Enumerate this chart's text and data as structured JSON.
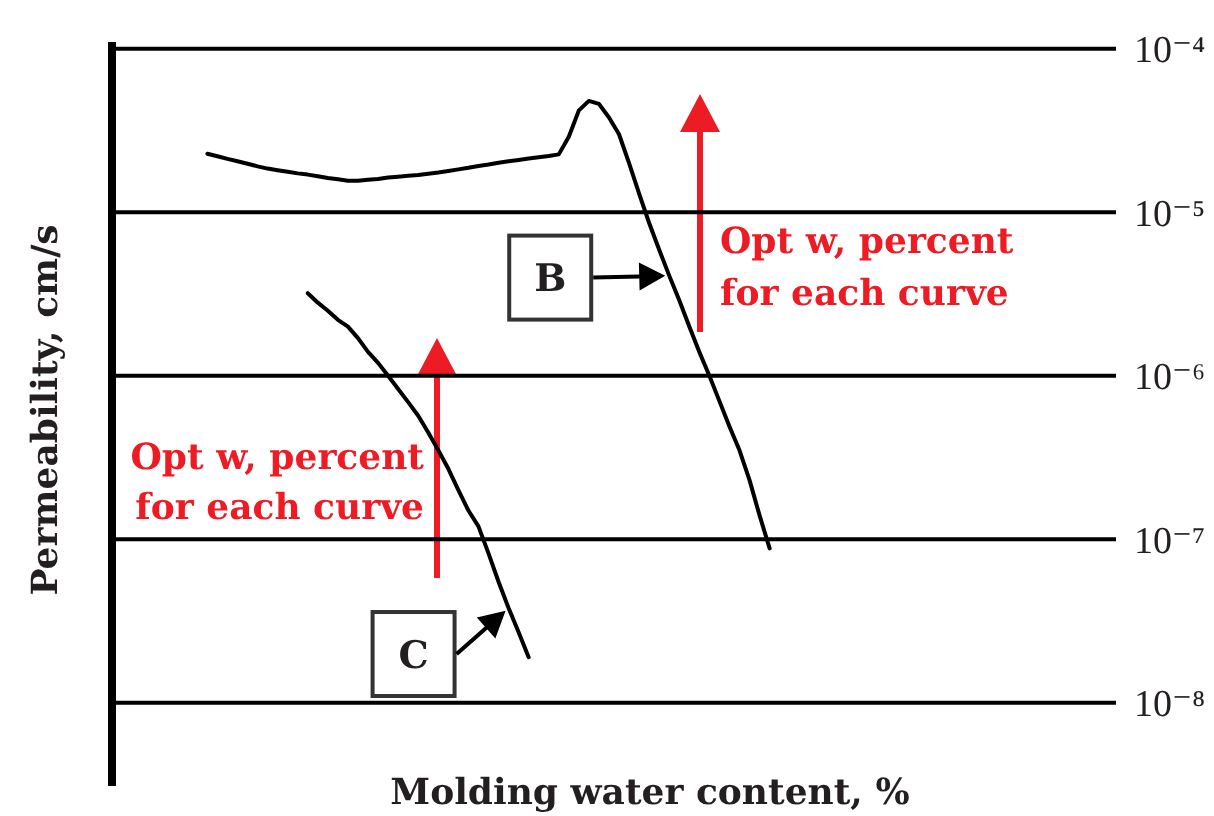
{
  "chart_data": {
    "type": "line",
    "xlabel": "Molding water content, %",
    "ylabel": "Permeability, cm/s",
    "categories": [
      null,
      null,
      null,
      null,
      null,
      null,
      null,
      null,
      null,
      null,
      null,
      null,
      null,
      null,
      null,
      null,
      null,
      null,
      null,
      null,
      null,
      null,
      null,
      null,
      null,
      null,
      null,
      null,
      null,
      null,
      null,
      null,
      null,
      null,
      null,
      null,
      null,
      null,
      null,
      null,
      null,
      null,
      null,
      null,
      null,
      null,
      null,
      null,
      null,
      null,
      null,
      null,
      null,
      null,
      null,
      null,
      null,
      null,
      null,
      null,
      null,
      null,
      null,
      null,
      null,
      null,
      null,
      null,
      null,
      null,
      null,
      null,
      null,
      null,
      null,
      null,
      null,
      null,
      null,
      null,
      null,
      null,
      null,
      null,
      null,
      null,
      null,
      null,
      null,
      null,
      null,
      null,
      null,
      null,
      null,
      null,
      null,
      null,
      null,
      null
    ],
    "series": [
      {
        "color": "#000000",
        "values": [
          null,
          null,
          null,
          null,
          null,
          null,
          null,
          null,
          null,
          2.28e-05,
          2.2e-05,
          2.12e-05,
          2.05e-05,
          1.98e-05,
          1.91e-05,
          1.85e-05,
          1.81e-05,
          1.77e-05,
          1.73e-05,
          1.7e-05,
          1.66e-05,
          1.62e-05,
          1.59e-05,
          1.56e-05,
          1.56e-05,
          1.58e-05,
          1.6e-05,
          1.63e-05,
          1.65e-05,
          1.67e-05,
          1.69e-05,
          1.72e-05,
          1.75e-05,
          1.79e-05,
          1.83e-05,
          1.87e-05,
          1.92e-05,
          1.96e-05,
          2.01e-05,
          2.05e-05,
          2.09e-05,
          2.13e-05,
          2.17e-05,
          2.21e-05,
          2.26e-05,
          2.9e-05,
          4.2e-05,
          4.8e-05,
          4.6e-05,
          3.8e-05,
          3e-05,
          2e-05,
          1.3e-05,
          8.6e-06,
          5.9e-06,
          4.1e-06,
          2.9e-06,
          2e-06,
          1.4e-06,
          1e-06,
          7e-07,
          4.9e-07,
          3.5e-07,
          2.3e-07,
          1.4e-07,
          8.8e-08,
          null,
          null,
          null,
          null,
          null,
          null,
          null,
          null,
          null,
          null,
          null,
          null,
          null,
          null,
          null,
          null,
          null,
          null,
          null,
          null,
          null,
          null,
          null,
          null,
          null,
          null,
          null,
          null,
          null,
          null,
          null,
          null,
          null,
          null
        ]
      },
      {
        "color": "#000000",
        "values": [
          null,
          null,
          null,
          null,
          null,
          null,
          null,
          null,
          null,
          null,
          null,
          null,
          null,
          null,
          null,
          null,
          null,
          null,
          null,
          3.2e-06,
          2.8e-06,
          2.5e-06,
          2.2e-06,
          2e-06,
          1.7e-06,
          1.4e-06,
          1.2e-06,
          1e-06,
          8.3e-07,
          6.9e-07,
          5.7e-07,
          4.5e-07,
          3.5e-07,
          2.7e-07,
          2e-07,
          1.5e-07,
          1.2e-07,
          8.2e-08,
          5.5e-08,
          3.8e-08,
          2.7e-08,
          1.9e-08,
          null,
          null,
          null,
          null,
          null,
          null,
          null,
          null,
          null,
          null,
          null,
          null,
          null,
          null,
          null,
          null,
          null,
          null,
          null,
          null,
          null,
          null,
          null,
          null,
          null,
          null,
          null,
          null,
          null,
          null,
          null,
          null,
          null,
          null,
          null,
          null,
          null,
          null,
          null,
          null,
          null,
          null,
          null,
          null,
          null,
          null,
          null,
          null,
          null,
          null,
          null,
          null,
          null,
          null,
          null,
          null,
          null,
          null
        ]
      }
    ],
    "ylim": [
      3.1e-09,
      0.00011
    ],
    "yticks": [
      {
        "value": 1e-08,
        "label": "10⁻⁸"
      },
      {
        "value": 1e-07,
        "label": "10⁻⁷"
      },
      {
        "value": 1e-06,
        "label": "10⁻⁶"
      },
      {
        "value": 1e-05,
        "label": "10⁻⁵"
      },
      {
        "value": 0.0001,
        "label": "10⁻⁴"
      }
    ],
    "log": true,
    "grid": "y",
    "tick_labels": "y",
    "marker": "none",
    "line_style": "solid",
    "annotations": [
      "Opt w, percent\nfor each curve",
      "B",
      "Opt w, percent\nfor each curve",
      "C"
    ]
  }
}
